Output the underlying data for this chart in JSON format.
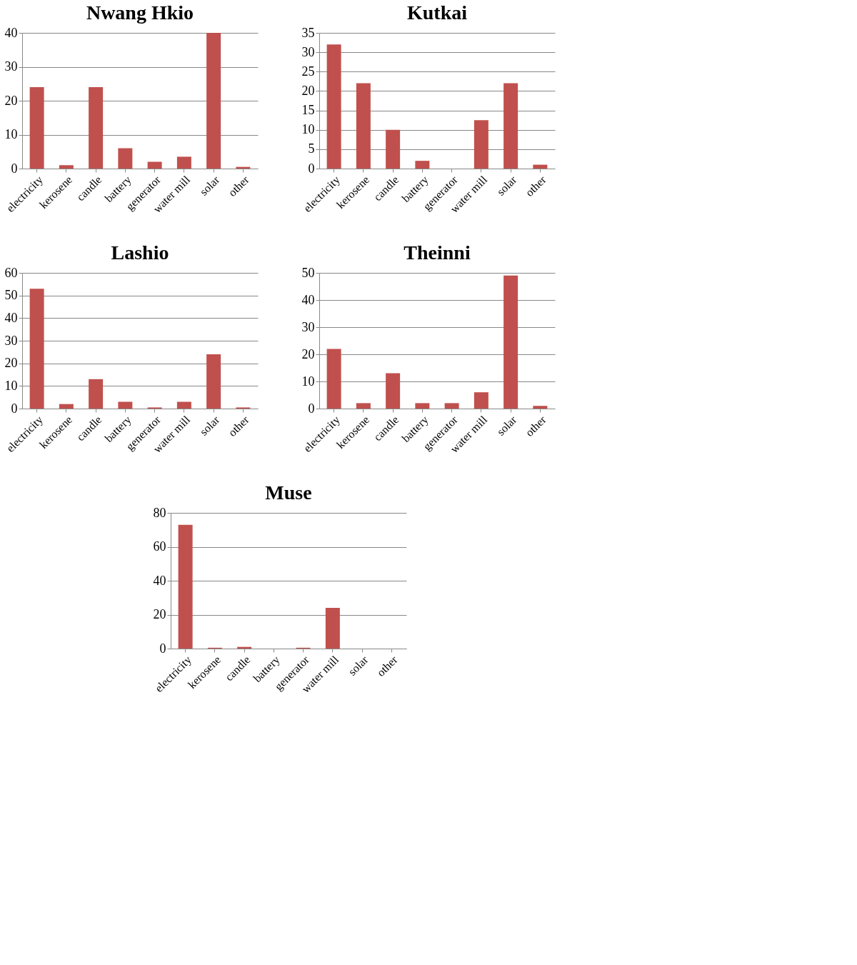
{
  "chart_data": [
    {
      "type": "bar",
      "title": "Nwang Hkio",
      "categories": [
        "electricity",
        "kerosene",
        "candle",
        "battery",
        "generator",
        "water mill",
        "solar",
        "other"
      ],
      "values": [
        24,
        1,
        24,
        6,
        2,
        3.5,
        40,
        0.5
      ],
      "color": "#c0504d",
      "ylim": [
        0,
        40
      ],
      "yticks": [
        0,
        10,
        20,
        30,
        40
      ],
      "grid": "y"
    },
    {
      "type": "bar",
      "title": "Kutkai",
      "categories": [
        "electricity",
        "kerosene",
        "candle",
        "battery",
        "generator",
        "water mill",
        "solar",
        "other"
      ],
      "values": [
        32,
        22,
        10,
        2,
        0,
        12.5,
        22,
        1
      ],
      "color": "#c0504d",
      "ylim": [
        0,
        35
      ],
      "yticks": [
        0,
        5,
        10,
        15,
        20,
        25,
        30,
        35
      ],
      "grid": "y"
    },
    {
      "type": "bar",
      "title": "Lashio",
      "categories": [
        "electricity",
        "kerosene",
        "candle",
        "battery",
        "generator",
        "water mill",
        "solar",
        "other"
      ],
      "values": [
        53,
        2,
        13,
        3,
        0.5,
        3,
        24,
        0.5
      ],
      "color": "#c0504d",
      "ylim": [
        0,
        60
      ],
      "yticks": [
        0,
        10,
        20,
        30,
        40,
        50,
        60
      ],
      "grid": "y"
    },
    {
      "type": "bar",
      "title": "Theinni",
      "categories": [
        "electricity",
        "kerosene",
        "candle",
        "battery",
        "generator",
        "water mill",
        "solar",
        "other"
      ],
      "values": [
        22,
        2,
        13,
        2,
        2,
        6,
        49,
        1
      ],
      "color": "#c0504d",
      "ylim": [
        0,
        50
      ],
      "yticks": [
        0,
        10,
        20,
        30,
        40,
        50
      ],
      "grid": "y"
    },
    {
      "type": "bar",
      "title": "Muse",
      "categories": [
        "electricity",
        "kerosene",
        "candle",
        "battery",
        "generator",
        "water mill",
        "solar",
        "other"
      ],
      "values": [
        73,
        0.5,
        1,
        0,
        0.5,
        24,
        0,
        0
      ],
      "color": "#c0504d",
      "ylim": [
        0,
        80
      ],
      "yticks": [
        0,
        20,
        40,
        60,
        80
      ],
      "grid": "y"
    }
  ]
}
